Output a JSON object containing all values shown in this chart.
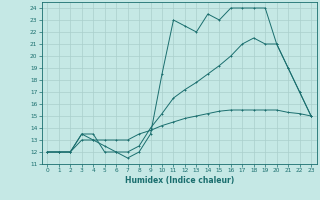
{
  "xlabel": "Humidex (Indice chaleur)",
  "xlim": [
    -0.5,
    23.5
  ],
  "ylim": [
    11,
    24.5
  ],
  "yticks": [
    11,
    12,
    13,
    14,
    15,
    16,
    17,
    18,
    19,
    20,
    21,
    22,
    23,
    24
  ],
  "xticks": [
    0,
    1,
    2,
    3,
    4,
    5,
    6,
    7,
    8,
    9,
    10,
    11,
    12,
    13,
    14,
    15,
    16,
    17,
    18,
    19,
    20,
    21,
    22,
    23
  ],
  "bg_color": "#c5e8e5",
  "grid_color": "#aacfcc",
  "line_color": "#1a6e6e",
  "line1_x": [
    0,
    1,
    2,
    3,
    4,
    5,
    6,
    7,
    8,
    9,
    10,
    11,
    12,
    13,
    14,
    15,
    16,
    17,
    18,
    19,
    20,
    21,
    22,
    23
  ],
  "line1_y": [
    12,
    12,
    12,
    13.5,
    13.5,
    12,
    12,
    11.5,
    12,
    13.5,
    18.5,
    23,
    22.5,
    22,
    23.5,
    23,
    24,
    24,
    24,
    24,
    21,
    19,
    17,
    15
  ],
  "line2_x": [
    0,
    1,
    2,
    3,
    4,
    5,
    6,
    7,
    8,
    9,
    10,
    11,
    12,
    13,
    14,
    15,
    16,
    17,
    18,
    19,
    20,
    21,
    22,
    23
  ],
  "line2_y": [
    12,
    12,
    12,
    13.5,
    13,
    12.5,
    12,
    12,
    12.5,
    14,
    15.2,
    16.5,
    17.2,
    17.8,
    18.5,
    19.2,
    20,
    21,
    21.5,
    21,
    21,
    19,
    17,
    15
  ],
  "line3_x": [
    0,
    1,
    2,
    3,
    4,
    5,
    6,
    7,
    8,
    9,
    10,
    11,
    12,
    13,
    14,
    15,
    16,
    17,
    18,
    19,
    20,
    21,
    22,
    23
  ],
  "line3_y": [
    12,
    12,
    12,
    13,
    13,
    13,
    13,
    13,
    13.5,
    13.8,
    14.2,
    14.5,
    14.8,
    15,
    15.2,
    15.4,
    15.5,
    15.5,
    15.5,
    15.5,
    15.5,
    15.3,
    15.2,
    15
  ]
}
